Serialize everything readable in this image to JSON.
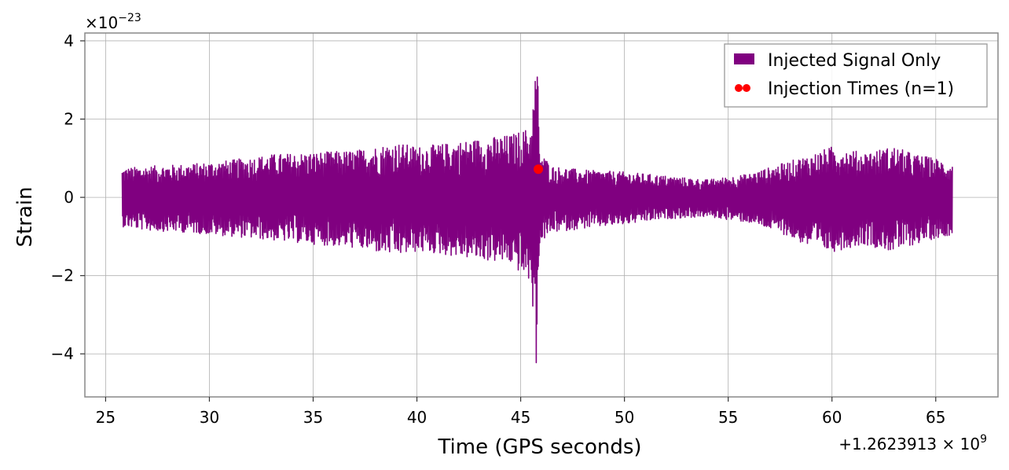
{
  "chart_data": {
    "type": "line",
    "title": "",
    "xlabel": "Time (GPS seconds)",
    "ylabel": "Strain",
    "x_offset_label": "+1.2623913 × 10",
    "x_offset_exp": "9",
    "y_scale_label": "×10",
    "y_scale_exp": "−23",
    "xlim": [
      24,
      68
    ],
    "ylim": [
      -5.1,
      4.2
    ],
    "x_ticks": [
      25,
      30,
      35,
      40,
      45,
      50,
      55,
      60,
      65
    ],
    "x_tick_labels": [
      "25",
      "30",
      "35",
      "40",
      "45",
      "50",
      "55",
      "60",
      "65"
    ],
    "y_ticks": [
      -4,
      -2,
      0,
      2,
      4
    ],
    "y_tick_labels": [
      "−4",
      "−2",
      "0",
      "2",
      "4"
    ],
    "grid": true,
    "legend_position": "top-right",
    "series": [
      {
        "name": "Injected Signal Only",
        "color": "#800080",
        "x_range": [
          25.8,
          65.8
        ],
        "envelope": {
          "t": [
            25.8,
            27.0,
            29.0,
            31.0,
            33.0,
            35.0,
            37.0,
            39.0,
            40.0,
            41.0,
            43.0,
            44.5,
            45.5,
            45.8,
            45.9,
            46.5,
            48.0,
            50.0,
            52.0,
            54.0,
            56.0,
            57.5,
            59.0,
            60.0,
            61.5,
            63.0,
            64.0,
            65.0,
            65.8
          ],
          "upper": [
            0.75,
            0.8,
            0.85,
            0.95,
            1.1,
            1.15,
            1.2,
            1.4,
            1.3,
            1.35,
            1.5,
            1.6,
            1.8,
            3.8,
            1.2,
            0.8,
            0.7,
            0.65,
            0.55,
            0.45,
            0.6,
            0.85,
            1.1,
            1.3,
            1.15,
            1.3,
            1.1,
            1.0,
            0.85
          ],
          "lower": [
            -0.75,
            -0.85,
            -0.9,
            -1.0,
            -1.1,
            -1.2,
            -1.3,
            -1.5,
            -1.4,
            -1.45,
            -1.6,
            -1.7,
            -2.2,
            -4.7,
            -1.2,
            -0.9,
            -0.8,
            -0.7,
            -0.55,
            -0.5,
            -0.65,
            -0.9,
            -1.3,
            -1.4,
            -1.2,
            -1.4,
            -1.2,
            -1.05,
            -0.95
          ]
        }
      },
      {
        "name": "Injection Times (n=1)",
        "color": "#ff0000",
        "marker": "circle",
        "x": [
          45.85
        ],
        "y": [
          0.72
        ]
      }
    ]
  }
}
